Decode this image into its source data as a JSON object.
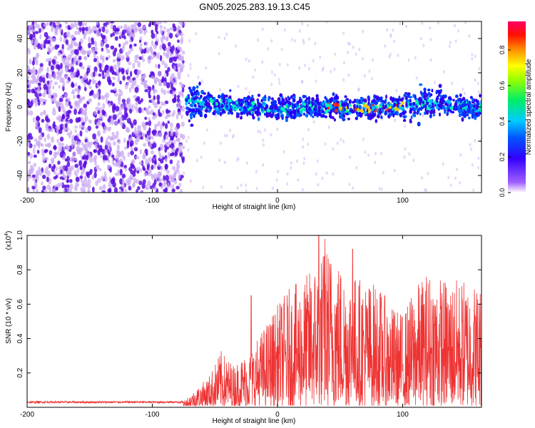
{
  "title": "GN05.2025.283.19.13.C45",
  "colors": {
    "snr_line": "#ee3333",
    "dot_strong": "#5a0ce0",
    "dot_weak": "#c9a8f2"
  },
  "chart_data": [
    {
      "type": "heatmap",
      "title": "GN05.2025.283.19.13.C45",
      "xlabel": "Height of straight line (km)",
      "ylabel": "Frequency (Hz)",
      "xlim": [
        -200,
        163
      ],
      "ylim": [
        -50,
        50
      ],
      "xticks": [
        -200,
        -100,
        0,
        100
      ],
      "yticks": [
        -40,
        -20,
        0,
        20,
        40
      ],
      "signal_onset_km": -75,
      "band_center_hz": [
        {
          "x": -70,
          "y": 3
        },
        {
          "x": -40,
          "y": 1
        },
        {
          "x": 0,
          "y": -1
        },
        {
          "x": 40,
          "y": 0
        },
        {
          "x": 80,
          "y": -1
        },
        {
          "x": 120,
          "y": 2
        },
        {
          "x": 160,
          "y": 0
        }
      ],
      "colorbar": {
        "label": "Normalized spectral amplitude",
        "range": [
          0,
          0.96
        ],
        "ticks": [
          "0.0",
          "0.2",
          "0.4",
          "0.6",
          "0.8"
        ],
        "ticks_values": [
          0.0,
          0.2,
          0.4,
          0.6,
          0.8
        ],
        "colormap": [
          "#ffffff",
          "#7a1cff",
          "#0000ff",
          "#00ccff",
          "#00ff66",
          "#ffff00",
          "#ff8800",
          "#ff0000",
          "#ff0066"
        ]
      }
    },
    {
      "type": "line",
      "xlabel": "Height of straight line (km)",
      "ylabel": "SNR (10 * v/v)",
      "y_scale_label": "(x10",
      "y_scale_exp": "4",
      "y_scale_close": ")",
      "xlim": [
        -200,
        163
      ],
      "ylim": [
        0,
        1.0
      ],
      "xticks": [
        -200,
        -100,
        0,
        100
      ],
      "yticks": [
        0.2,
        0.4,
        0.6,
        0.8,
        1.0
      ],
      "ytick_labels": [
        "0.2",
        "0.4",
        "0.6",
        "0.8",
        "1.0"
      ],
      "baseline": 0.03,
      "envelope": [
        {
          "x": -200,
          "y": 0.04
        },
        {
          "x": -75,
          "y": 0.04
        },
        {
          "x": -55,
          "y": 0.18
        },
        {
          "x": -45,
          "y": 0.33
        },
        {
          "x": -35,
          "y": 0.25
        },
        {
          "x": -20,
          "y": 0.35
        },
        {
          "x": -10,
          "y": 0.48
        },
        {
          "x": 0,
          "y": 0.6
        },
        {
          "x": 10,
          "y": 0.7
        },
        {
          "x": 20,
          "y": 0.74
        },
        {
          "x": 30,
          "y": 0.85
        },
        {
          "x": 40,
          "y": 0.95
        },
        {
          "x": 55,
          "y": 0.8
        },
        {
          "x": 70,
          "y": 0.75
        },
        {
          "x": 80,
          "y": 0.72
        },
        {
          "x": 90,
          "y": 0.6
        },
        {
          "x": 100,
          "y": 0.55
        },
        {
          "x": 110,
          "y": 0.7
        },
        {
          "x": 120,
          "y": 0.8
        },
        {
          "x": 135,
          "y": 0.75
        },
        {
          "x": 150,
          "y": 0.75
        },
        {
          "x": 163,
          "y": 0.72
        }
      ],
      "peaks": [
        {
          "x": -21,
          "y": 0.65
        },
        {
          "x": 33,
          "y": 1.0
        },
        {
          "x": 38,
          "y": 0.98
        },
        {
          "x": 60,
          "y": 0.92
        }
      ]
    }
  ]
}
